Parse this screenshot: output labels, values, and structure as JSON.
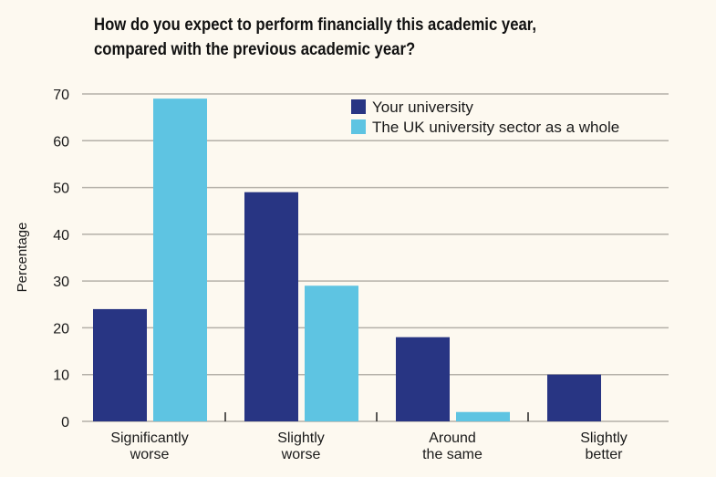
{
  "chart_data": {
    "type": "bar",
    "title": "How do you expect to perform financially this academic year, compared with the previous academic year?",
    "xlabel": "",
    "ylabel": "Percentage",
    "ylim": [
      0,
      70
    ],
    "yticks": [
      0,
      10,
      20,
      30,
      40,
      50,
      60,
      70
    ],
    "grid": true,
    "legend_position": "top-right",
    "categories": [
      [
        "Significantly",
        "worse"
      ],
      [
        "Slightly",
        "worse"
      ],
      [
        "Around",
        "the same"
      ],
      [
        "Slightly",
        "better"
      ]
    ],
    "series": [
      {
        "name": "Your university",
        "color": "#283583",
        "values": [
          24,
          49,
          18,
          10
        ]
      },
      {
        "name": "The UK university sector as a whole",
        "color": "#5ec4e2",
        "values": [
          69,
          29,
          2,
          0
        ]
      }
    ]
  }
}
